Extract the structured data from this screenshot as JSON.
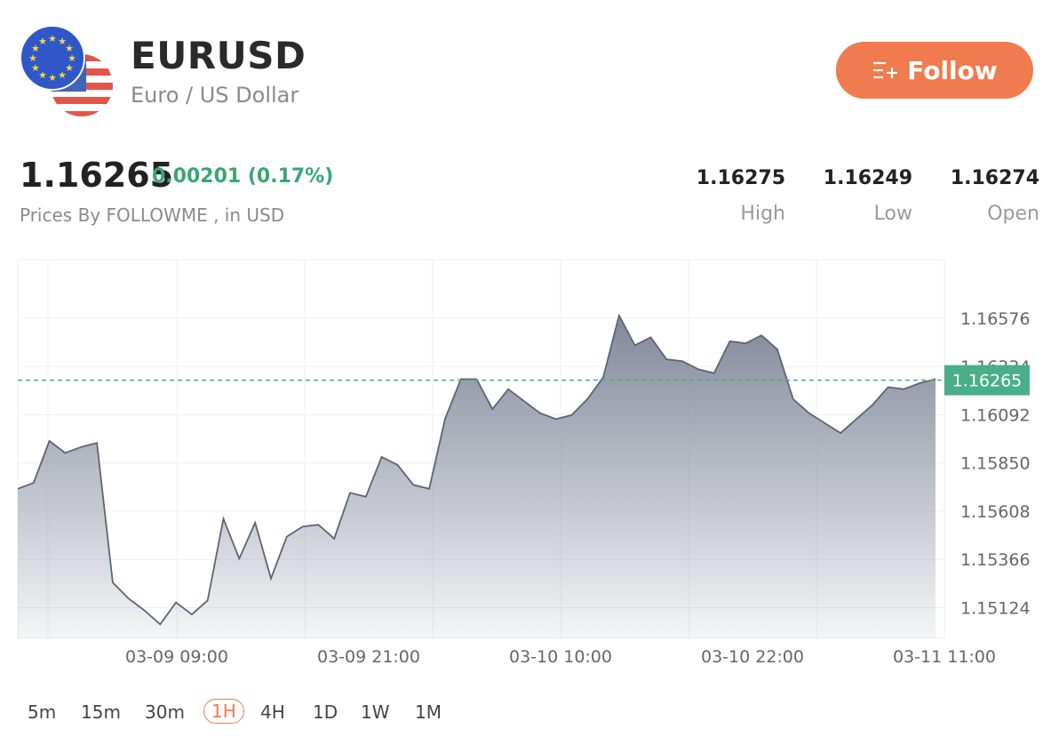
{
  "header": {
    "symbol": "EURUSD",
    "name": "Euro / US Dollar",
    "follow_label": "Follow"
  },
  "quote": {
    "price": "1.16265",
    "change": "0.00201 (0.17%)",
    "source": "Prices By FOLLOWME , in USD"
  },
  "stats": [
    {
      "value": "1.16275",
      "label": "High"
    },
    {
      "value": "1.16249",
      "label": "Low"
    },
    {
      "value": "1.16274",
      "label": "Open"
    }
  ],
  "timeframes": [
    "5m",
    "15m",
    "30m",
    "1H",
    "4H",
    "1D",
    "1W",
    "1M"
  ],
  "active_timeframe": "1H",
  "colors": {
    "accent": "#ef7b4f",
    "positive": "#3aa574",
    "line": "#5d6475",
    "current_price": "#4aae8b"
  },
  "icons": {
    "follow": "add-list-icon",
    "flag_eu": "eu-flag-icon",
    "flag_us": "us-flag-icon"
  },
  "chart_data": {
    "type": "area",
    "x_ticks": [
      "03-09 09:00",
      "03-09 21:00",
      "03-10 10:00",
      "03-10 22:00",
      "03-11 11:00"
    ],
    "y_ticks": [
      "1.16576",
      "1.16334",
      "1.16092",
      "1.15850",
      "1.15608",
      "1.15366",
      "1.15124"
    ],
    "current_price_label": "1.16265",
    "current_price": 1.16265,
    "ylim": [
      1.1497,
      1.1687
    ],
    "series": [
      {
        "values": [
          1.1572,
          1.1575,
          1.1596,
          1.159,
          1.1593,
          1.1595,
          1.1525,
          1.1517,
          1.1511,
          1.1504,
          1.1515,
          1.1509,
          1.1516,
          1.1557,
          1.1537,
          1.1555,
          1.1527,
          1.1548,
          1.1553,
          1.1554,
          1.1547,
          1.157,
          1.1568,
          1.1588,
          1.1584,
          1.1574,
          1.1572,
          1.1607,
          1.1627,
          1.1627,
          1.1612,
          1.1622,
          1.1616,
          1.161,
          1.1607,
          1.1609,
          1.1617,
          1.1628,
          1.1659,
          1.1644,
          1.1648,
          1.1637,
          1.1636,
          1.1632,
          1.163,
          1.1646,
          1.1645,
          1.1649,
          1.1642,
          1.1617,
          1.161,
          1.1605,
          1.16,
          1.1607,
          1.1614,
          1.1623,
          1.1622,
          1.1625,
          1.1627
        ]
      }
    ]
  }
}
